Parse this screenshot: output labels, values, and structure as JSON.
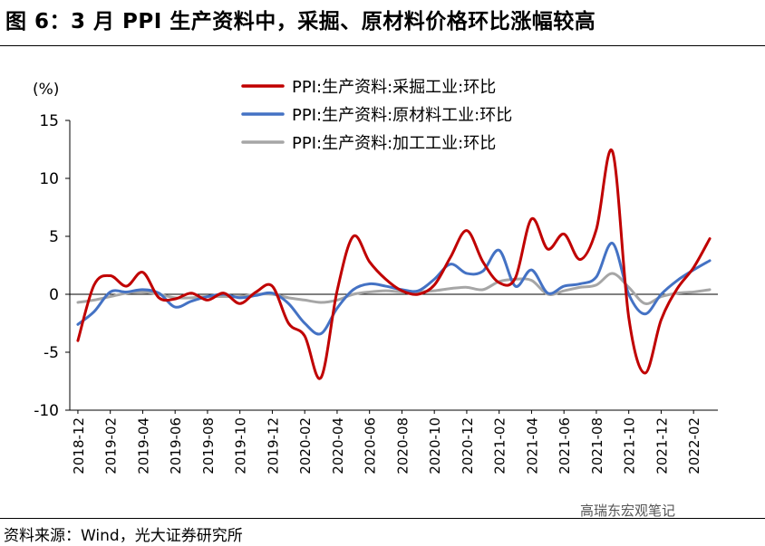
{
  "title": "图 6：3 月 PPI 生产资料中，采掘、原材料价格环比涨幅较高",
  "source": "资料来源：Wind，光大证券研究所",
  "watermark": "高瑞东宏观笔记",
  "chart_data": {
    "type": "line",
    "ylabel": "(%)",
    "xlabel": "",
    "ylim": [
      -10,
      15
    ],
    "yticks": [
      15,
      10,
      5,
      0,
      -5,
      -10
    ],
    "legend_position": "top-center",
    "x": [
      "2018-12",
      "2019-01",
      "2019-02",
      "2019-03",
      "2019-04",
      "2019-05",
      "2019-06",
      "2019-07",
      "2019-08",
      "2019-09",
      "2019-10",
      "2019-11",
      "2019-12",
      "2020-01",
      "2020-02",
      "2020-03",
      "2020-04",
      "2020-05",
      "2020-06",
      "2020-07",
      "2020-08",
      "2020-09",
      "2020-10",
      "2020-11",
      "2020-12",
      "2021-01",
      "2021-02",
      "2021-03",
      "2021-04",
      "2021-05",
      "2021-06",
      "2021-07",
      "2021-08",
      "2021-09",
      "2021-10",
      "2021-11",
      "2021-12",
      "2022-01",
      "2022-02",
      "2022-03"
    ],
    "xtick_labels": [
      "2018-12",
      "2019-02",
      "2019-04",
      "2019-06",
      "2019-08",
      "2019-10",
      "2019-12",
      "2020-02",
      "2020-04",
      "2020-06",
      "2020-08",
      "2020-10",
      "2020-12",
      "2021-02",
      "2021-04",
      "2021-06",
      "2021-08",
      "2021-10",
      "2021-12",
      "2022-02"
    ],
    "series": [
      {
        "name": "PPI:生产资料:采掘工业:环比",
        "color": "#C00000",
        "values": [
          -4.0,
          0.8,
          1.6,
          0.7,
          1.9,
          -0.3,
          -0.4,
          0.1,
          -0.5,
          0.1,
          -0.8,
          0.2,
          0.7,
          -2.5,
          -3.6,
          -7.2,
          0.3,
          5.0,
          2.8,
          1.3,
          0.3,
          0.0,
          0.8,
          3.2,
          5.5,
          2.8,
          1.0,
          1.4,
          6.5,
          3.9,
          5.2,
          3.0,
          5.6,
          12.3,
          -2.0,
          -6.8,
          -2.2,
          0.5,
          2.3,
          4.8
        ]
      },
      {
        "name": "PPI:生产资料:原材料工业:环比",
        "color": "#4472C4",
        "values": [
          -2.6,
          -1.5,
          0.2,
          0.2,
          0.4,
          0.1,
          -1.1,
          -0.6,
          -0.2,
          0.0,
          -0.3,
          -0.1,
          0.1,
          -0.8,
          -2.5,
          -3.4,
          -1.2,
          0.4,
          0.9,
          0.7,
          0.4,
          0.3,
          1.3,
          2.6,
          1.8,
          2.0,
          3.8,
          0.7,
          2.1,
          0.1,
          0.7,
          0.9,
          1.5,
          4.4,
          0.0,
          -1.7,
          0.0,
          1.2,
          2.1,
          2.9
        ]
      },
      {
        "name": "PPI:生产资料:加工工业:环比",
        "color": "#A6A6A6",
        "values": [
          -0.7,
          -0.5,
          -0.2,
          0.1,
          0.2,
          0.0,
          -0.3,
          -0.3,
          -0.2,
          -0.2,
          -0.2,
          0.0,
          0.0,
          -0.3,
          -0.5,
          -0.7,
          -0.5,
          0.0,
          0.2,
          0.3,
          0.2,
          0.2,
          0.3,
          0.5,
          0.6,
          0.4,
          1.1,
          1.3,
          1.2,
          0.0,
          0.3,
          0.6,
          0.8,
          1.8,
          0.6,
          -0.8,
          -0.2,
          0.1,
          0.2,
          0.4
        ]
      }
    ]
  }
}
